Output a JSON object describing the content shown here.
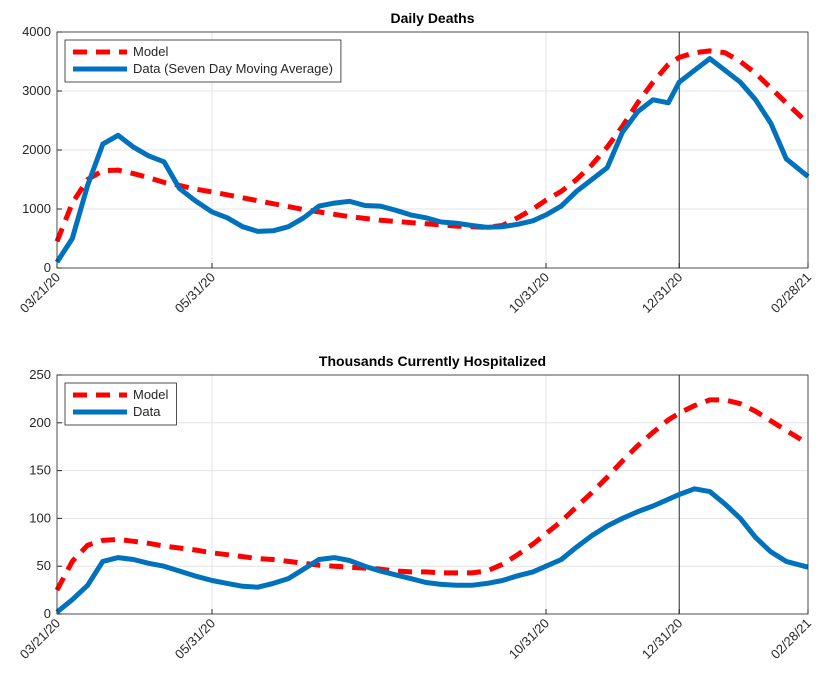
{
  "chart_data": [
    {
      "type": "line",
      "title": "Daily Deaths",
      "x": [
        "03/21/20",
        "03/28/20",
        "04/04/20",
        "04/11/20",
        "04/18/20",
        "04/25/20",
        "05/02/20",
        "05/09/20",
        "05/16/20",
        "05/23/20",
        "05/31/20",
        "06/07/20",
        "06/14/20",
        "06/21/20",
        "06/28/20",
        "07/05/20",
        "07/12/20",
        "07/19/20",
        "07/26/20",
        "08/02/20",
        "08/09/20",
        "08/16/20",
        "08/23/20",
        "08/30/20",
        "09/06/20",
        "09/13/20",
        "09/20/20",
        "09/27/20",
        "10/04/20",
        "10/11/20",
        "10/18/20",
        "10/25/20",
        "10/31/20",
        "11/07/20",
        "11/14/20",
        "11/21/20",
        "11/28/20",
        "12/05/20",
        "12/12/20",
        "12/19/20",
        "12/26/20",
        "12/31/20",
        "01/07/21",
        "01/14/21",
        "01/21/21",
        "01/28/21",
        "02/04/21",
        "02/11/21",
        "02/18/21",
        "02/28/21"
      ],
      "series": [
        {
          "name": "Model",
          "color": "#ff0000",
          "style": "dashed",
          "values": [
            450,
            1100,
            1500,
            1650,
            1660,
            1600,
            1530,
            1450,
            1400,
            1340,
            1290,
            1240,
            1190,
            1140,
            1090,
            1040,
            990,
            950,
            910,
            870,
            840,
            810,
            790,
            770,
            750,
            730,
            710,
            700,
            690,
            720,
            850,
            1000,
            1150,
            1300,
            1500,
            1750,
            2050,
            2400,
            2800,
            3150,
            3450,
            3570,
            3650,
            3680,
            3650,
            3500,
            3300,
            3050,
            2800,
            2450
          ]
        },
        {
          "name": "Data (Seven Day Moving Average)",
          "color": "#0072bd",
          "style": "solid",
          "values": [
            100,
            500,
            1400,
            2100,
            2250,
            2050,
            1900,
            1800,
            1350,
            1150,
            950,
            850,
            700,
            620,
            630,
            700,
            850,
            1050,
            1100,
            1130,
            1060,
            1050,
            980,
            900,
            850,
            780,
            760,
            720,
            690,
            700,
            740,
            800,
            900,
            1050,
            1300,
            1500,
            1700,
            2300,
            2650,
            2850,
            2800,
            3150,
            3350,
            3550,
            3350,
            3150,
            2850,
            2450,
            1850,
            1550
          ]
        }
      ],
      "xlim": [
        "03/21/20",
        "02/28/21"
      ],
      "xticks": [
        "03/21/20",
        "05/31/20",
        "10/31/20",
        "12/31/20",
        "02/28/21"
      ],
      "ylim": [
        0,
        4000
      ],
      "yticks": [
        0,
        1000,
        2000,
        3000,
        4000
      ],
      "grid": true,
      "vline": "12/31/20",
      "legend": "top-left"
    },
    {
      "type": "line",
      "title": "Thousands Currently Hospitalized",
      "x": [
        "03/21/20",
        "03/28/20",
        "04/04/20",
        "04/11/20",
        "04/18/20",
        "04/25/20",
        "05/02/20",
        "05/09/20",
        "05/16/20",
        "05/23/20",
        "05/31/20",
        "06/07/20",
        "06/14/20",
        "06/21/20",
        "06/28/20",
        "07/05/20",
        "07/12/20",
        "07/19/20",
        "07/26/20",
        "08/02/20",
        "08/09/20",
        "08/16/20",
        "08/23/20",
        "08/30/20",
        "09/06/20",
        "09/13/20",
        "09/20/20",
        "09/27/20",
        "10/04/20",
        "10/11/20",
        "10/18/20",
        "10/25/20",
        "10/31/20",
        "11/07/20",
        "11/14/20",
        "11/21/20",
        "11/28/20",
        "12/05/20",
        "12/12/20",
        "12/19/20",
        "12/26/20",
        "12/31/20",
        "01/07/21",
        "01/14/21",
        "01/21/21",
        "01/28/21",
        "02/04/21",
        "02/11/21",
        "02/18/21",
        "02/28/21"
      ],
      "series": [
        {
          "name": "Model",
          "color": "#ff0000",
          "style": "dashed",
          "values": [
            25,
            55,
            72,
            77,
            78,
            76,
            74,
            71,
            69,
            67,
            64,
            62,
            60,
            58,
            57,
            55,
            53,
            51,
            50,
            49,
            48,
            47,
            45,
            44,
            44,
            43,
            43,
            43,
            45,
            52,
            62,
            73,
            84,
            97,
            112,
            127,
            143,
            160,
            176,
            190,
            203,
            210,
            218,
            224,
            224,
            220,
            212,
            202,
            192,
            178
          ]
        },
        {
          "name": "Data",
          "color": "#0072bd",
          "style": "solid",
          "values": [
            2,
            15,
            30,
            55,
            59,
            57,
            53,
            50,
            45,
            40,
            35,
            32,
            29,
            28,
            32,
            37,
            47,
            57,
            59,
            56,
            50,
            45,
            41,
            37,
            33,
            31,
            30,
            30,
            32,
            35,
            40,
            44,
            50,
            57,
            70,
            82,
            92,
            100,
            107,
            113,
            120,
            125,
            131,
            128,
            115,
            100,
            80,
            65,
            55,
            49
          ]
        }
      ],
      "xlim": [
        "03/21/20",
        "02/28/21"
      ],
      "xticks": [
        "03/21/20",
        "05/31/20",
        "10/31/20",
        "12/31/20",
        "02/28/21"
      ],
      "ylim": [
        0,
        250
      ],
      "yticks": [
        0,
        50,
        100,
        150,
        200,
        250
      ],
      "grid": true,
      "vline": "12/31/20",
      "legend": "top-left"
    }
  ]
}
